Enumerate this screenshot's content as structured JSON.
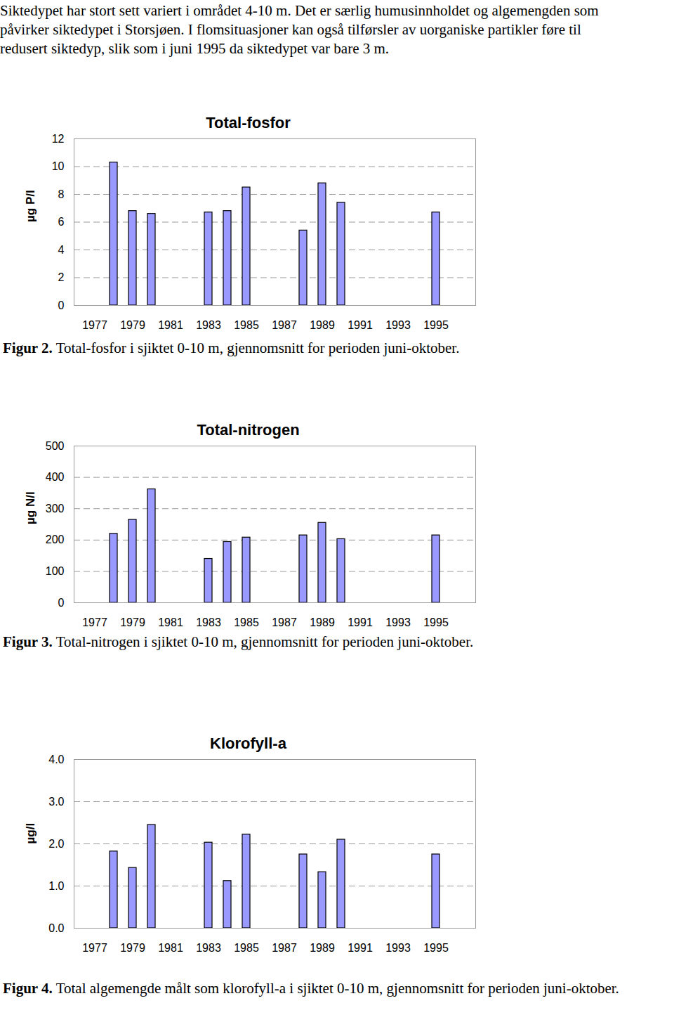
{
  "paragraph_lines": [
    "Siktedypet har stort sett variert i området 4-10 m. Det er særlig humusinnholdet og algemengden som",
    "påvirker siktedypet i Storsjøen. I flomsituasjoner kan også tilførsler av uorganiske partikler føre til",
    "redusert siktedyp, slik som i juni 1995 da siktedypet var bare 3 m."
  ],
  "chart_data": [
    {
      "type": "bar",
      "title": "Total-fosfor",
      "ylabel": "µg P/l",
      "categories": [
        "1977",
        null,
        "1979",
        null,
        "1981",
        null,
        "1983",
        null,
        "1985",
        null,
        "1987",
        null,
        "1989",
        null,
        "1991",
        null,
        "1993",
        null,
        "1995",
        null
      ],
      "values": [
        null,
        10.3,
        6.8,
        6.6,
        null,
        null,
        6.7,
        6.8,
        8.5,
        null,
        null,
        5.4,
        8.8,
        7.4,
        null,
        null,
        null,
        null,
        6.7,
        null
      ],
      "color": "#9999ff",
      "ylim": [
        0,
        12
      ],
      "yticks": [
        0,
        2,
        4,
        6,
        8,
        10,
        12
      ],
      "grid": true,
      "caption_label": "Figur 2.",
      "caption": "Total-fosfor i sjiktet 0-10 m, gjennomsnitt for perioden juni-oktober."
    },
    {
      "type": "bar",
      "title": "Total-nitrogen",
      "ylabel": "µg N/l",
      "categories": [
        "1977",
        null,
        "1979",
        null,
        "1981",
        null,
        "1983",
        null,
        "1985",
        null,
        "1987",
        null,
        "1989",
        null,
        "1991",
        null,
        "1993",
        null,
        "1995",
        null
      ],
      "values": [
        null,
        220,
        265,
        362,
        null,
        null,
        140,
        194,
        208,
        null,
        null,
        215,
        255,
        203,
        null,
        null,
        null,
        null,
        215,
        null
      ],
      "color": "#9999ff",
      "ylim": [
        0,
        500
      ],
      "yticks": [
        0,
        100,
        200,
        300,
        400,
        500
      ],
      "grid": true,
      "caption_label": "Figur 3.",
      "caption": "Total-nitrogen i sjiktet 0-10 m, gjennomsnitt for perioden juni-oktober."
    },
    {
      "type": "bar",
      "title": "Klorofyll-a",
      "ylabel": "µg/l",
      "categories": [
        "1977",
        null,
        "1979",
        null,
        "1981",
        null,
        "1983",
        null,
        "1985",
        null,
        "1987",
        null,
        "1989",
        null,
        "1991",
        null,
        "1993",
        null,
        "1995",
        null
      ],
      "values": [
        null,
        1.82,
        1.43,
        2.45,
        null,
        null,
        2.03,
        1.12,
        2.22,
        null,
        null,
        1.75,
        1.33,
        2.1,
        null,
        null,
        null,
        null,
        1.75,
        null
      ],
      "color": "#9999ff",
      "ylim": [
        0,
        4
      ],
      "yticks": [
        0,
        1,
        2,
        3,
        4
      ],
      "grid": true,
      "caption_label": "Figur 4.",
      "caption": "Total algemengde målt som klorofyll-a i sjiktet 0-10 m, gjennomsnitt for perioden juni-oktober."
    }
  ]
}
